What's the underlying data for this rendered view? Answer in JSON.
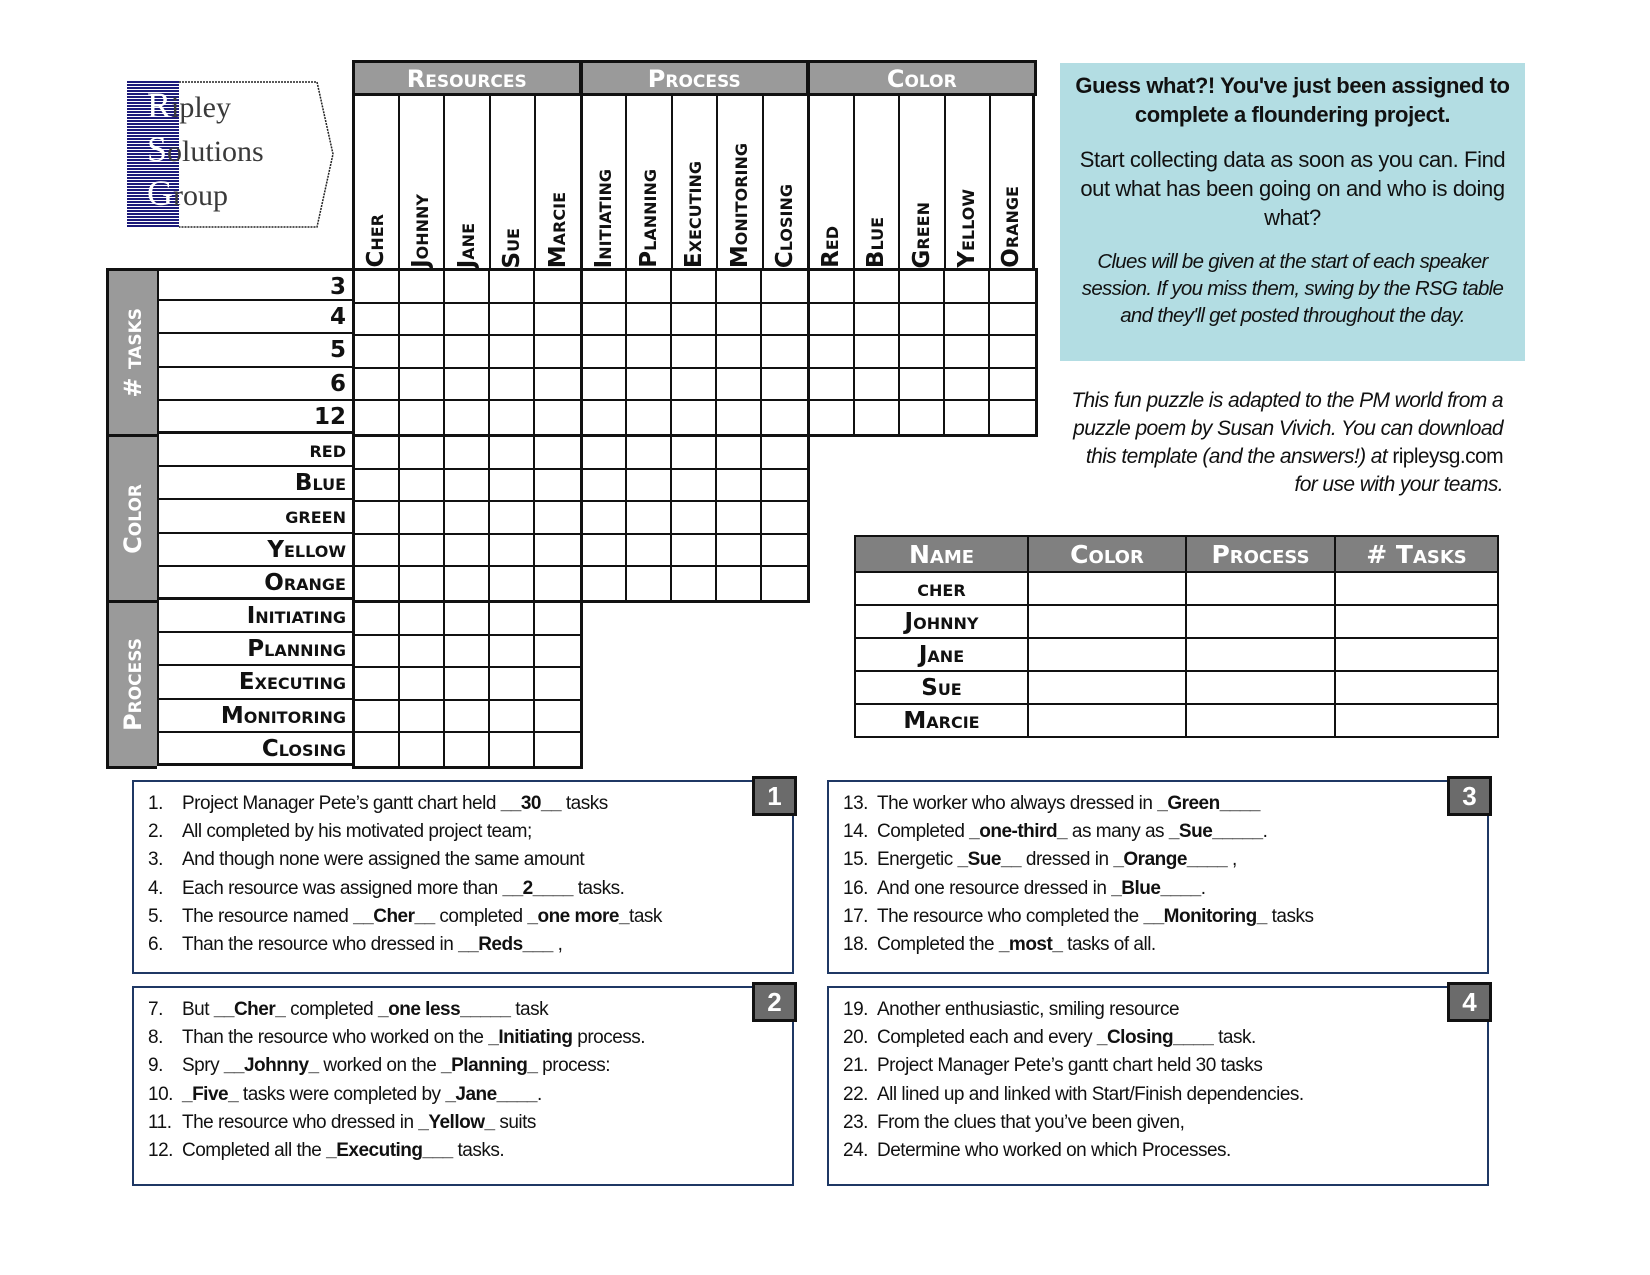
{
  "logo": {
    "lines": [
      {
        "initial": "R",
        "rest": "ipley"
      },
      {
        "initial": "S",
        "rest": "olutions"
      },
      {
        "initial": "G",
        "rest": "roup"
      }
    ]
  },
  "grid": {
    "groups": [
      "Resources",
      "Process",
      "Color"
    ],
    "columns": {
      "resources": [
        "Cher",
        "Johnny",
        "Jane",
        "Sue",
        "Marcie"
      ],
      "process": [
        "Initiating",
        "Planning",
        "Executing",
        "Monitoring",
        "Closing"
      ],
      "color": [
        "Red",
        "Blue",
        "Green",
        "Yellow",
        "Orange"
      ]
    },
    "row_groups": [
      {
        "label": "# tasks",
        "rows": [
          "3",
          "4",
          "5",
          "6",
          "12"
        ]
      },
      {
        "label": "Color",
        "rows": [
          "red",
          "Blue",
          "green",
          "Yellow",
          "Orange"
        ]
      },
      {
        "label": "Process",
        "rows": [
          "Initiating",
          "Planning",
          "Executing",
          "Monitoring",
          "Closing"
        ]
      }
    ]
  },
  "info": {
    "headline": "Guess what?! You've just been assigned to complete a floundering project.",
    "body": "Start collecting data as soon as you can.  Find out what has been going on and who is doing what?",
    "note": "Clues will be given at the start of each speaker session.  If you miss them, swing by the RSG table and they'll get posted throughout the day."
  },
  "credit": {
    "text": "This fun puzzle is adapted to the PM world from a puzzle poem by Susan Vivich.  You can download this template (and the answers!) at ",
    "link": "ripleysg.com",
    "tail": " for use with your teams."
  },
  "answer_table": {
    "headers": [
      "Name",
      "Color",
      "Process",
      "# Tasks"
    ],
    "names": [
      "cher",
      "Johnny",
      "Jane",
      "Sue",
      "Marcie"
    ]
  },
  "clue_boxes": [
    {
      "badge": "1",
      "lines": [
        {
          "n": "1.",
          "parts": [
            [
              "Project Manager Pete’s gantt chart held ",
              0
            ],
            [
              "__30__",
              1
            ],
            [
              " tasks",
              0
            ]
          ]
        },
        {
          "n": "2.",
          "parts": [
            [
              "All completed by his motivated project team;",
              0
            ]
          ]
        },
        {
          "n": "3.",
          "parts": [
            [
              "And though none were assigned the same amount",
              0
            ]
          ]
        },
        {
          "n": "4.",
          "parts": [
            [
              "Each resource was assigned more than ",
              0
            ],
            [
              "__2____",
              1
            ],
            [
              " tasks.",
              0
            ]
          ]
        },
        {
          "n": "5.",
          "parts": [
            [
              "The resource named ",
              0
            ],
            [
              "__Cher__",
              1
            ],
            [
              " completed ",
              0
            ],
            [
              "_one more_",
              1
            ],
            [
              "task",
              0
            ]
          ]
        },
        {
          "n": "6.",
          "parts": [
            [
              "Than the resource who dressed in ",
              0
            ],
            [
              "__Reds___",
              1
            ],
            [
              " ,",
              0
            ]
          ]
        }
      ]
    },
    {
      "badge": "2",
      "lines": [
        {
          "n": "7.",
          "parts": [
            [
              "But ",
              0
            ],
            [
              "__Cher_",
              1
            ],
            [
              " completed ",
              0
            ],
            [
              "_one less_____",
              1
            ],
            [
              " task",
              0
            ]
          ]
        },
        {
          "n": "8.",
          "parts": [
            [
              "Than the resource who worked on the ",
              0
            ],
            [
              "_Initiating",
              1
            ],
            [
              " process.",
              0
            ]
          ]
        },
        {
          "n": "9.",
          "parts": [
            [
              "Spry  ",
              0
            ],
            [
              "__Johnny_",
              1
            ],
            [
              " worked on the ",
              0
            ],
            [
              "_Planning_",
              1
            ],
            [
              " process:",
              0
            ]
          ]
        },
        {
          "n": "10.",
          "parts": [
            [
              "_Five_",
              1
            ],
            [
              " tasks were completed by ",
              0
            ],
            [
              "_Jane____",
              1
            ],
            [
              ".",
              0
            ]
          ]
        },
        {
          "n": "11.",
          "parts": [
            [
              "The resource who dressed in ",
              0
            ],
            [
              "_Yellow_",
              1
            ],
            [
              " suits",
              0
            ]
          ]
        },
        {
          "n": "12.",
          "parts": [
            [
              "Completed all the ",
              0
            ],
            [
              "_Executing___",
              1
            ],
            [
              " tasks.",
              0
            ]
          ]
        }
      ]
    },
    {
      "badge": "3",
      "lines": [
        {
          "n": "13.",
          "parts": [
            [
              "The worker who always dressed in ",
              0
            ],
            [
              "_Green____",
              1
            ]
          ]
        },
        {
          "n": "14.",
          "parts": [
            [
              "Completed ",
              0
            ],
            [
              "_one-third_",
              1
            ],
            [
              " as many as ",
              0
            ],
            [
              "_Sue_____",
              1
            ],
            [
              ".",
              0
            ]
          ]
        },
        {
          "n": "15.",
          "parts": [
            [
              "Energetic ",
              0
            ],
            [
              "_Sue__",
              1
            ],
            [
              " dressed in ",
              0
            ],
            [
              "_Orange____",
              1
            ],
            [
              " ,",
              0
            ]
          ]
        },
        {
          "n": "16.",
          "parts": [
            [
              "And one resource dressed in ",
              0
            ],
            [
              "_Blue____",
              1
            ],
            [
              ".",
              0
            ]
          ]
        },
        {
          "n": "17.",
          "parts": [
            [
              "The resource who completed the ",
              0
            ],
            [
              "__Monitoring_",
              1
            ],
            [
              " tasks",
              0
            ]
          ]
        },
        {
          "n": "18.",
          "parts": [
            [
              "Completed the ",
              0
            ],
            [
              "_most_",
              1
            ],
            [
              " tasks of all.",
              0
            ]
          ]
        }
      ]
    },
    {
      "badge": "4",
      "lines": [
        {
          "n": "19.",
          "parts": [
            [
              "Another enthusiastic, smiling resource",
              0
            ]
          ]
        },
        {
          "n": "20.",
          "parts": [
            [
              "Completed each and every ",
              0
            ],
            [
              "_Closing____",
              1
            ],
            [
              " task.",
              0
            ]
          ]
        },
        {
          "n": "21.",
          "parts": [
            [
              "Project Manager Pete’s gantt chart held 30 tasks",
              0
            ]
          ]
        },
        {
          "n": "22.",
          "parts": [
            [
              "All lined up and linked with Start/Finish dependencies.",
              0
            ]
          ]
        },
        {
          "n": "23.",
          "parts": [
            [
              "From the clues that you’ve been given,",
              0
            ]
          ]
        },
        {
          "n": "24.",
          "parts": [
            [
              "Determine who worked on which Processes.",
              0
            ]
          ]
        }
      ]
    }
  ],
  "colors": {
    "header_grey": "#9a9a9a",
    "info_bg": "#b3dde3",
    "logo_blue": "#1c1a7a",
    "clue_border": "#1f3864"
  }
}
